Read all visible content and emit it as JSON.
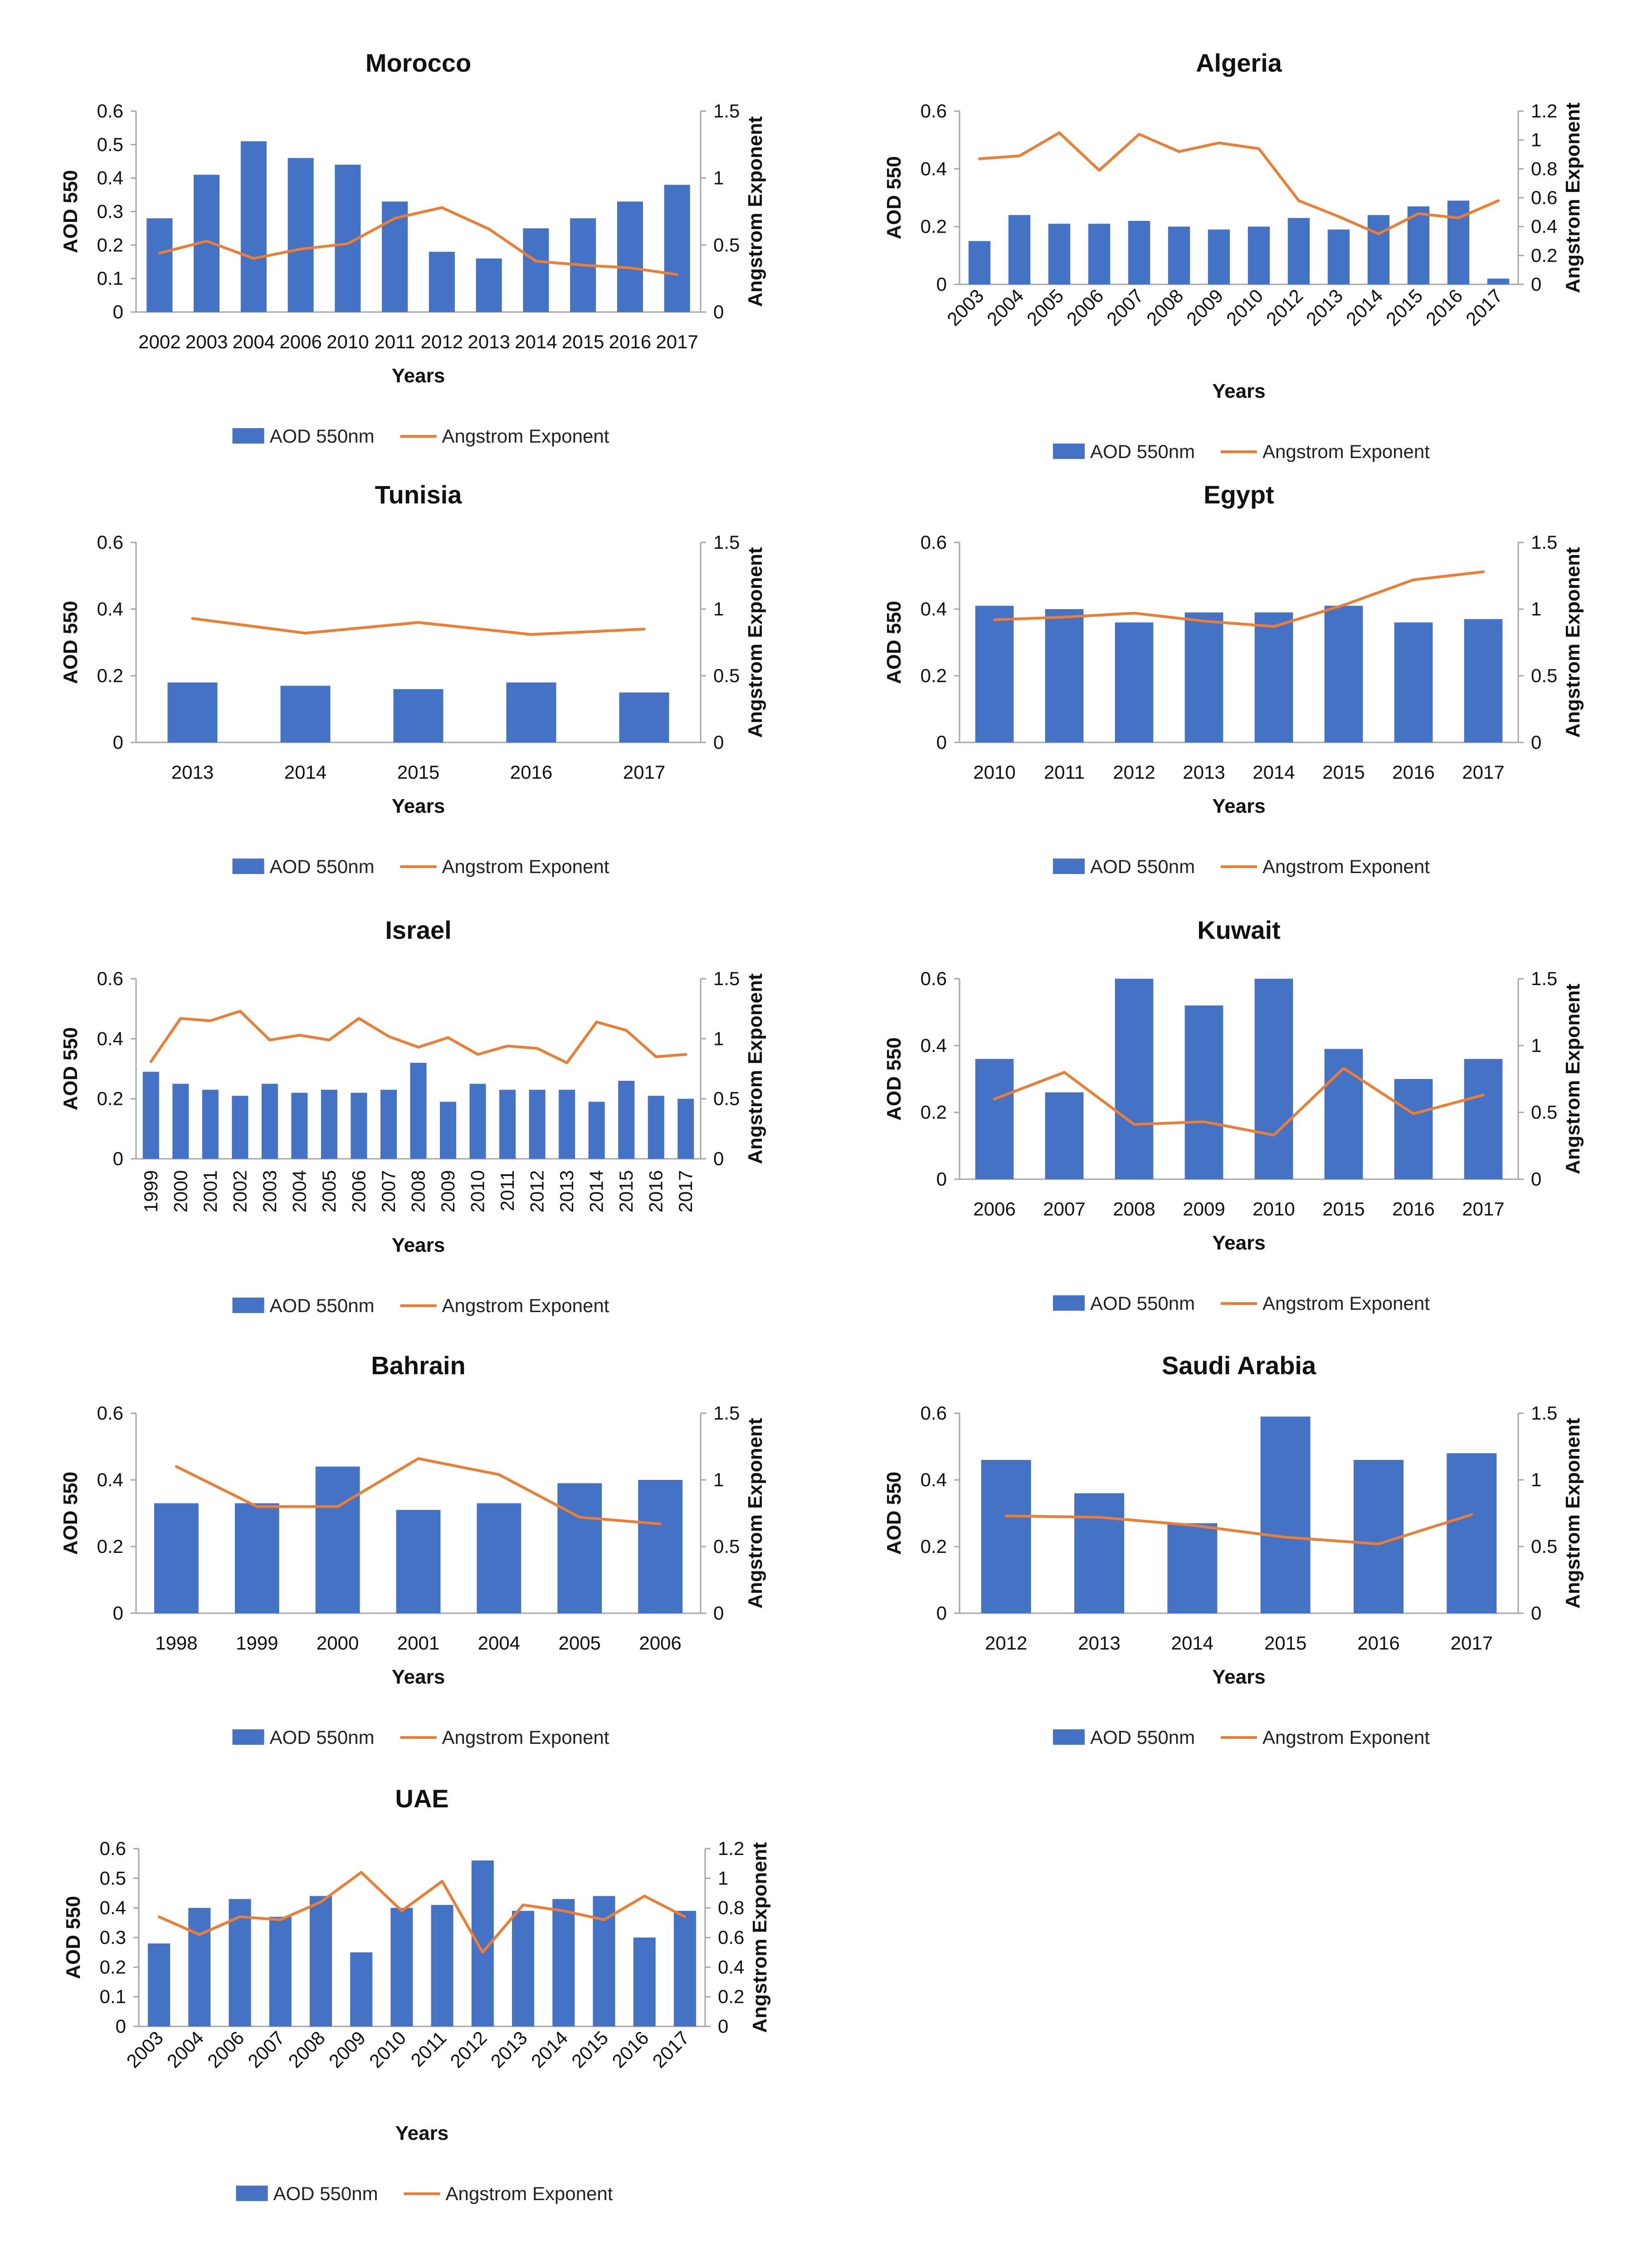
{
  "colors": {
    "bar": "#4472C4",
    "line": "#ED7D31",
    "axis": "#A6A6A6",
    "text": "#111111"
  },
  "chart_data": [
    {
      "type": "bar",
      "country": "Morocco",
      "title": "Morocco",
      "xlabel": "Years",
      "ylabel": "AOD 550",
      "y2label": "Angstrom Exponent",
      "categories": [
        "2002",
        "2003",
        "2004",
        "2006",
        "2010",
        "2011",
        "2012",
        "2013",
        "2014",
        "2015",
        "2016",
        "2017"
      ],
      "series": [
        {
          "name": "AOD 550nm",
          "type": "bar",
          "axis": "left",
          "values": [
            0.28,
            0.41,
            0.51,
            0.46,
            0.44,
            0.33,
            0.18,
            0.16,
            0.25,
            0.28,
            0.33,
            0.38
          ]
        },
        {
          "name": "Angstrom Exponent",
          "type": "line",
          "axis": "right",
          "values": [
            0.44,
            0.53,
            0.4,
            0.47,
            0.51,
            0.7,
            0.78,
            0.62,
            0.38,
            0.35,
            0.33,
            0.28
          ]
        }
      ],
      "ylim": [
        0,
        0.6
      ],
      "yticks": [
        "0",
        "0.1",
        "0.2",
        "0.3",
        "0.4",
        "0.5",
        "0.6"
      ],
      "y2lim": [
        0,
        1.5
      ],
      "y2ticks": [
        "0",
        "0.5",
        "1",
        "1.5"
      ],
      "rotated_xticks": false,
      "legend": [
        "AOD 550nm",
        "Angstrom Exponent"
      ],
      "legend_position": "bottom"
    },
    {
      "type": "bar",
      "country": "Algeria",
      "title": "Algeria",
      "xlabel": "Years",
      "ylabel": "AOD 550",
      "y2label": "Angstrom Exponent",
      "categories": [
        "2003",
        "2004",
        "2005",
        "2006",
        "2007",
        "2008",
        "2009",
        "2010",
        "2012",
        "2013",
        "2014",
        "2015",
        "2016",
        "2017"
      ],
      "series": [
        {
          "name": "AOD 550nm",
          "type": "bar",
          "axis": "left",
          "values": [
            0.15,
            0.24,
            0.21,
            0.21,
            0.22,
            0.2,
            0.19,
            0.2,
            0.23,
            0.19,
            0.24,
            0.27,
            0.29,
            0.02
          ]
        },
        {
          "name": "Angstrom Exponent",
          "type": "line",
          "axis": "right",
          "values": [
            0.87,
            0.89,
            1.05,
            0.79,
            1.04,
            0.92,
            0.98,
            0.94,
            0.58,
            0.47,
            0.35,
            0.49,
            0.46,
            0.58
          ]
        }
      ],
      "ylim": [
        0,
        0.6
      ],
      "yticks": [
        "0",
        "0.2",
        "0.4",
        "0.6"
      ],
      "y2lim": [
        0,
        1.2
      ],
      "y2ticks": [
        "0",
        "0.2",
        "0.4",
        "0.6",
        "0.8",
        "1",
        "1.2"
      ],
      "rotated_xticks": true,
      "legend": [
        "AOD 550nm",
        "Angstrom Exponent"
      ],
      "legend_position": "bottom"
    },
    {
      "type": "bar",
      "country": "Tunisia",
      "title": "Tunisia",
      "xlabel": "Years",
      "ylabel": "AOD 550",
      "y2label": "Angstrom Exponent",
      "categories": [
        "2013",
        "2014",
        "2015",
        "2016",
        "2017"
      ],
      "series": [
        {
          "name": "AOD 550nm",
          "type": "bar",
          "axis": "left",
          "values": [
            0.18,
            0.17,
            0.16,
            0.18,
            0.15
          ]
        },
        {
          "name": "Angstrom Exponent",
          "type": "line",
          "axis": "right",
          "values": [
            0.93,
            0.82,
            0.9,
            0.81,
            0.85
          ]
        }
      ],
      "ylim": [
        0,
        0.6
      ],
      "yticks": [
        "0",
        "0.2",
        "0.4",
        "0.6"
      ],
      "y2lim": [
        0,
        1.5
      ],
      "y2ticks": [
        "0",
        "0.5",
        "1",
        "1.5"
      ],
      "rotated_xticks": false,
      "legend": [
        "AOD 550nm",
        "Angstrom Exponent"
      ],
      "legend_position": "bottom"
    },
    {
      "type": "bar",
      "country": "Egypt",
      "title": "Egypt",
      "xlabel": "Years",
      "ylabel": "AOD 550",
      "y2label": "Angstrom Exponent",
      "categories": [
        "2010",
        "2011",
        "2012",
        "2013",
        "2014",
        "2015",
        "2016",
        "2017"
      ],
      "series": [
        {
          "name": "AOD 550nm",
          "type": "bar",
          "axis": "left",
          "values": [
            0.41,
            0.4,
            0.36,
            0.39,
            0.39,
            0.41,
            0.36,
            0.37
          ]
        },
        {
          "name": "Angstrom Exponent",
          "type": "line",
          "axis": "right",
          "values": [
            0.92,
            0.94,
            0.97,
            0.91,
            0.87,
            1.03,
            1.22,
            1.28
          ]
        }
      ],
      "ylim": [
        0,
        0.6
      ],
      "yticks": [
        "0",
        "0.2",
        "0.4",
        "0.6"
      ],
      "y2lim": [
        0,
        1.5
      ],
      "y2ticks": [
        "0",
        "0.5",
        "1",
        "1.5"
      ],
      "rotated_xticks": false,
      "legend": [
        "AOD 550nm",
        "Angstrom Exponent"
      ],
      "legend_position": "bottom"
    },
    {
      "type": "bar",
      "country": "Israel",
      "title": "Israel",
      "xlabel": "Years",
      "ylabel": "AOD 550",
      "y2label": "Angstrom Exponent",
      "categories": [
        "1999",
        "2000",
        "2001",
        "2002",
        "2003",
        "2004",
        "2005",
        "2006",
        "2007",
        "2008",
        "2009",
        "2010",
        "2011",
        "2012",
        "2013",
        "2014",
        "2015",
        "2016",
        "2017"
      ],
      "series": [
        {
          "name": "AOD 550nm",
          "type": "bar",
          "axis": "left",
          "values": [
            0.29,
            0.25,
            0.23,
            0.21,
            0.25,
            0.22,
            0.23,
            0.22,
            0.23,
            0.32,
            0.19,
            0.25,
            0.23,
            0.23,
            0.23,
            0.19,
            0.26,
            0.21,
            0.2
          ]
        },
        {
          "name": "Angstrom Exponent",
          "type": "line",
          "axis": "right",
          "values": [
            0.81,
            1.17,
            1.15,
            1.23,
            0.99,
            1.03,
            0.99,
            1.17,
            1.02,
            0.93,
            1.01,
            0.87,
            0.94,
            0.92,
            0.8,
            1.14,
            1.07,
            0.85,
            0.87
          ]
        }
      ],
      "ylim": [
        0,
        0.6
      ],
      "yticks": [
        "0",
        "0.2",
        "0.4",
        "0.6"
      ],
      "y2lim": [
        0,
        1.5
      ],
      "y2ticks": [
        "0",
        "0.5",
        "1",
        "1.5"
      ],
      "rotated_xticks": "vertical",
      "legend": [
        "AOD 550nm",
        "Angstrom Exponent"
      ],
      "legend_position": "bottom"
    },
    {
      "type": "bar",
      "country": "Kuwait",
      "title": "Kuwait",
      "xlabel": "Years",
      "ylabel": "AOD 550",
      "y2label": "Angstrom Exponent",
      "categories": [
        "2006",
        "2007",
        "2008",
        "2009",
        "2010",
        "2015",
        "2016",
        "2017"
      ],
      "series": [
        {
          "name": "AOD 550nm",
          "type": "bar",
          "axis": "left",
          "values": [
            0.36,
            0.26,
            0.6,
            0.52,
            0.6,
            0.39,
            0.3,
            0.36
          ]
        },
        {
          "name": "Angstrom Exponent",
          "type": "line",
          "axis": "right",
          "values": [
            0.6,
            0.8,
            0.41,
            0.43,
            0.33,
            0.83,
            0.49,
            0.63
          ]
        }
      ],
      "ylim": [
        0,
        0.6
      ],
      "yticks": [
        "0",
        "0.2",
        "0.4",
        "0.6"
      ],
      "y2lim": [
        0,
        1.5
      ],
      "y2ticks": [
        "0",
        "0.5",
        "1",
        "1.5"
      ],
      "rotated_xticks": false,
      "legend": [
        "AOD 550nm",
        "Angstrom Exponent"
      ],
      "legend_position": "bottom"
    },
    {
      "type": "bar",
      "country": "Bahrain",
      "title": "Bahrain",
      "xlabel": "Years",
      "ylabel": "AOD 550",
      "y2label": "Angstrom Exponent",
      "categories": [
        "1998",
        "1999",
        "2000",
        "2001",
        "2004",
        "2005",
        "2006"
      ],
      "series": [
        {
          "name": "AOD 550nm",
          "type": "bar",
          "axis": "left",
          "values": [
            0.33,
            0.33,
            0.44,
            0.31,
            0.33,
            0.39,
            0.4
          ]
        },
        {
          "name": "Angstrom Exponent",
          "type": "line",
          "axis": "right",
          "values": [
            1.1,
            0.8,
            0.8,
            1.16,
            1.04,
            0.72,
            0.67
          ]
        }
      ],
      "ylim": [
        0,
        0.6
      ],
      "yticks": [
        "0",
        "0.2",
        "0.4",
        "0.6"
      ],
      "y2lim": [
        0,
        1.5
      ],
      "y2ticks": [
        "0",
        "0.5",
        "1",
        "1.5"
      ],
      "rotated_xticks": false,
      "legend": [
        "AOD 550nm",
        "Angstrom Exponent"
      ],
      "legend_position": "bottom"
    },
    {
      "type": "bar",
      "country": "Saudi Arabia",
      "title": "Saudi Arabia",
      "xlabel": "Years",
      "ylabel": "AOD 550",
      "y2label": "Angstrom Exponent",
      "categories": [
        "2012",
        "2013",
        "2014",
        "2015",
        "2016",
        "2017"
      ],
      "series": [
        {
          "name": "AOD 550nm",
          "type": "bar",
          "axis": "left",
          "values": [
            0.46,
            0.36,
            0.27,
            0.59,
            0.46,
            0.48
          ]
        },
        {
          "name": "Angstrom Exponent",
          "type": "line",
          "axis": "right",
          "values": [
            0.73,
            0.72,
            0.66,
            0.57,
            0.52,
            0.74
          ]
        }
      ],
      "ylim": [
        0,
        0.6
      ],
      "yticks": [
        "0",
        "0.2",
        "0.4",
        "0.6"
      ],
      "y2lim": [
        0,
        1.5
      ],
      "y2ticks": [
        "0",
        "0.5",
        "1",
        "1.5"
      ],
      "rotated_xticks": false,
      "legend": [
        "AOD 550nm",
        "Angstrom Exponent"
      ],
      "legend_position": "bottom"
    },
    {
      "type": "bar",
      "country": "UAE",
      "title": "UAE",
      "xlabel": "Years",
      "ylabel": "AOD 550",
      "y2label": "Angstrom Exponent",
      "categories": [
        "2003",
        "2004",
        "2006",
        "2007",
        "2008",
        "2009",
        "2010",
        "2011",
        "2012",
        "2013",
        "2014",
        "2015",
        "2016",
        "2017"
      ],
      "series": [
        {
          "name": "AOD 550nm",
          "type": "bar",
          "axis": "left",
          "values": [
            0.28,
            0.4,
            0.43,
            0.37,
            0.44,
            0.25,
            0.4,
            0.41,
            0.56,
            0.39,
            0.43,
            0.44,
            0.3,
            0.39
          ]
        },
        {
          "name": "Angstrom Exponent",
          "type": "line",
          "axis": "right",
          "values": [
            0.74,
            0.62,
            0.74,
            0.72,
            0.84,
            1.04,
            0.78,
            0.98,
            0.5,
            0.82,
            0.78,
            0.72,
            0.88,
            0.74
          ]
        }
      ],
      "ylim": [
        0,
        0.6
      ],
      "yticks": [
        "0",
        "0.1",
        "0.2",
        "0.3",
        "0.4",
        "0.5",
        "0.6"
      ],
      "y2lim": [
        0,
        1.2
      ],
      "y2ticks": [
        "0",
        "0.2",
        "0.4",
        "0.6",
        "0.8",
        "1",
        "1.2"
      ],
      "rotated_xticks": true,
      "legend": [
        "AOD 550nm",
        "Angstrom Exponent"
      ],
      "legend_position": "bottom"
    }
  ]
}
